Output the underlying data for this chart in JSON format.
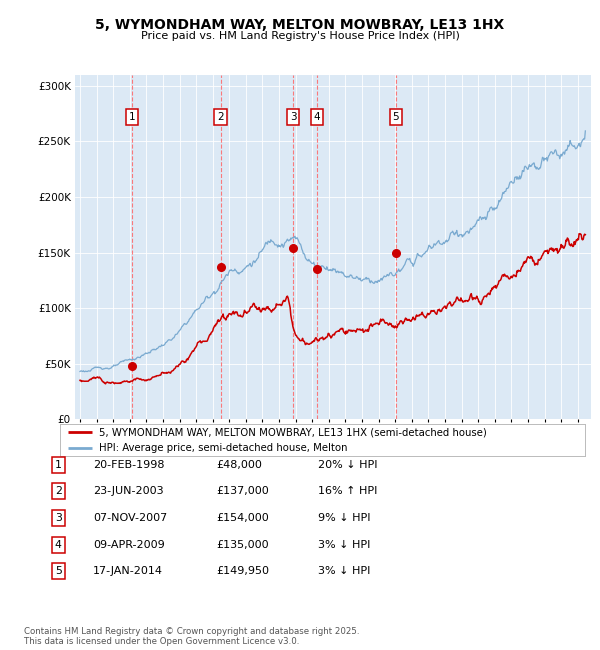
{
  "title": "5, WYMONDHAM WAY, MELTON MOWBRAY, LE13 1HX",
  "subtitle": "Price paid vs. HM Land Registry's House Price Index (HPI)",
  "legend_line1": "5, WYMONDHAM WAY, MELTON MOWBRAY, LE13 1HX (semi-detached house)",
  "legend_line2": "HPI: Average price, semi-detached house, Melton",
  "footer_line1": "Contains HM Land Registry data © Crown copyright and database right 2025.",
  "footer_line2": "This data is licensed under the Open Government Licence v3.0.",
  "transactions": [
    {
      "num": 1,
      "date": "20-FEB-1998",
      "price": 48000,
      "pct": "20%",
      "dir": "↓",
      "year": 1998.12
    },
    {
      "num": 2,
      "date": "23-JUN-2003",
      "price": 137000,
      "pct": "16%",
      "dir": "↑",
      "year": 2003.47
    },
    {
      "num": 3,
      "date": "07-NOV-2007",
      "price": 154000,
      "pct": "9%",
      "dir": "↓",
      "year": 2007.85
    },
    {
      "num": 4,
      "date": "09-APR-2009",
      "price": 135000,
      "pct": "3%",
      "dir": "↓",
      "year": 2009.27
    },
    {
      "num": 5,
      "date": "17-JAN-2014",
      "price": 149950,
      "pct": "3%",
      "dir": "↓",
      "year": 2014.04
    }
  ],
  "hpi_color": "#7aaad0",
  "price_color": "#cc0000",
  "dot_color": "#cc0000",
  "vline_color": "#ff6666",
  "bg_color": "#dce9f5",
  "ylim": [
    0,
    310000
  ],
  "yticks": [
    0,
    50000,
    100000,
    150000,
    200000,
    250000,
    300000
  ],
  "xlim_start": 1994.7,
  "xlim_end": 2025.8,
  "table_rows": [
    [
      "1",
      "20-FEB-1998",
      "£48,000",
      "20% ↓ HPI"
    ],
    [
      "2",
      "23-JUN-2003",
      "£137,000",
      "16% ↑ HPI"
    ],
    [
      "3",
      "07-NOV-2007",
      "£154,000",
      "9% ↓ HPI"
    ],
    [
      "4",
      "09-APR-2009",
      "£135,000",
      "3% ↓ HPI"
    ],
    [
      "5",
      "17-JAN-2014",
      "£149,950",
      "3% ↓ HPI"
    ]
  ]
}
